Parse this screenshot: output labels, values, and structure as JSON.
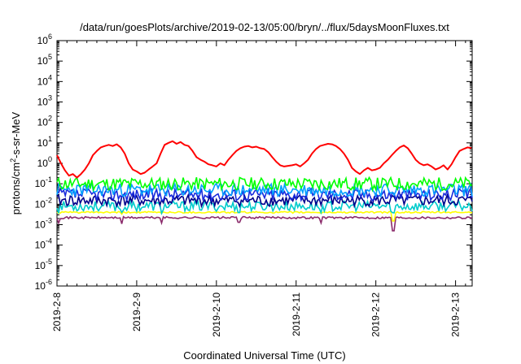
{
  "chart_data": {
    "type": "line",
    "title": "/data/run/goesPlots/archive/2019-02-13/05:00/bryn/../flux/5daysMoonFluxes.txt",
    "xlabel": "Coordinated Universal Time (UTC)",
    "ylabel": "protons/cm²-s-sr-MeV",
    "ylabel_parts": {
      "base": "protons/cm",
      "sup": "2",
      "rest": "-s-sr-MeV"
    },
    "yscale": "log",
    "ylim": [
      1e-06,
      1000000.0
    ],
    "ytick_exponents": [
      -6,
      -5,
      -4,
      -3,
      -2,
      -1,
      0,
      1,
      2,
      3,
      4,
      5,
      6
    ],
    "xlim": [
      "2019-02-08 00:00",
      "2019-02-13 05:00"
    ],
    "x_ticks": [
      {
        "label": "2019-2-8",
        "day": 0
      },
      {
        "label": "2019-2-9",
        "day": 1
      },
      {
        "label": "2019-2-10",
        "day": 2
      },
      {
        "label": "2019-2-11",
        "day": 3
      },
      {
        "label": "2019-2-12",
        "day": 4
      },
      {
        "label": "2019-2-13",
        "day": 5
      }
    ],
    "x_days_span": 5.2083,
    "grid": false,
    "legend": "none",
    "series": [
      {
        "color": "#ff0000",
        "x": [
          0.0,
          0.05,
          0.1,
          0.15,
          0.2,
          0.25,
          0.3,
          0.35,
          0.4,
          0.45,
          0.5,
          0.55,
          0.6,
          0.65,
          0.7,
          0.75,
          0.8,
          0.85,
          0.9,
          0.95,
          1.0,
          1.05,
          1.1,
          1.15,
          1.2,
          1.25,
          1.3,
          1.35,
          1.4,
          1.45,
          1.5,
          1.55,
          1.6,
          1.65,
          1.7,
          1.75,
          1.8,
          1.85,
          1.9,
          1.95,
          2.0,
          2.05,
          2.1,
          2.15,
          2.2,
          2.25,
          2.3,
          2.35,
          2.4,
          2.45,
          2.5,
          2.55,
          2.6,
          2.65,
          2.7,
          2.75,
          2.8,
          2.85,
          2.9,
          2.95,
          3.0,
          3.05,
          3.1,
          3.15,
          3.2,
          3.25,
          3.3,
          3.35,
          3.4,
          3.45,
          3.5,
          3.55,
          3.6,
          3.65,
          3.7,
          3.75,
          3.8,
          3.85,
          3.9,
          3.95,
          4.0,
          4.05,
          4.1,
          4.15,
          4.2,
          4.25,
          4.3,
          4.35,
          4.4,
          4.45,
          4.5,
          4.55,
          4.6,
          4.65,
          4.7,
          4.75,
          4.8,
          4.85,
          4.9,
          4.95,
          5.0,
          5.05,
          5.1,
          5.15,
          5.2
        ],
        "values": [
          2.5,
          1.0,
          0.45,
          0.25,
          0.3,
          0.2,
          0.3,
          0.5,
          1.0,
          2.5,
          4.0,
          6.0,
          7.0,
          8.0,
          7.0,
          8.5,
          6.0,
          3.0,
          1.0,
          0.5,
          0.4,
          0.3,
          0.35,
          0.5,
          0.7,
          1.0,
          3.0,
          8.0,
          10.0,
          12.0,
          9.0,
          11.0,
          8.0,
          7.0,
          4.0,
          2.0,
          1.5,
          1.2,
          0.9,
          0.8,
          0.7,
          1.0,
          0.8,
          1.5,
          2.5,
          4.0,
          5.5,
          6.5,
          7.0,
          6.0,
          6.5,
          5.5,
          5.0,
          3.5,
          2.0,
          1.2,
          0.8,
          0.7,
          0.75,
          0.8,
          0.9,
          0.7,
          1.0,
          1.5,
          3.0,
          5.0,
          7.0,
          8.0,
          9.0,
          8.5,
          7.0,
          5.0,
          3.0,
          1.5,
          0.6,
          0.4,
          0.3,
          0.45,
          0.6,
          0.45,
          0.5,
          0.6,
          1.0,
          1.5,
          2.5,
          4.0,
          6.0,
          7.5,
          5.5,
          3.0,
          1.5,
          1.0,
          0.8,
          0.9,
          0.7,
          0.5,
          0.6,
          0.8,
          0.5,
          0.9,
          2.0,
          4.0,
          5.0,
          6.0,
          5.5
        ]
      },
      {
        "color": "#00ff00",
        "x": [],
        "values": []
      },
      {
        "color": "#00a0ff",
        "x": [],
        "values": []
      },
      {
        "color": "#1a2bdc",
        "x": [],
        "values": []
      },
      {
        "color": "#00008b",
        "x": [],
        "values": []
      },
      {
        "color": "#00cccc",
        "x": [],
        "values": []
      },
      {
        "color": "#ffff00",
        "x": [],
        "values": []
      },
      {
        "color": "#8b2b6b",
        "x": [],
        "values": []
      }
    ],
    "generated_series": [
      {
        "color": "#00ff00",
        "level": 0.1,
        "jitter": 0.32,
        "seed": 11
      },
      {
        "color": "#00a0ff",
        "level": 0.05,
        "jitter": 0.32,
        "seed": 23
      },
      {
        "color": "#1a2bdc",
        "level": 0.03,
        "jitter": 0.3,
        "seed": 37
      },
      {
        "color": "#00008b",
        "level": 0.015,
        "jitter": 0.28,
        "seed": 41
      },
      {
        "color": "#00cccc",
        "level": 0.008,
        "jitter": 0.25,
        "seed": 53
      },
      {
        "color": "#ffff00",
        "level": 0.004,
        "jitter": 0.04,
        "seed": 61
      },
      {
        "color": "#8b2b6b",
        "level": 0.0022,
        "jitter": 0.05,
        "seed": 71
      }
    ],
    "dips": [
      {
        "day": 0.02,
        "to": 0.0012
      },
      {
        "day": 0.82,
        "to": 0.0011
      },
      {
        "day": 1.32,
        "to": 0.0012
      },
      {
        "day": 2.28,
        "to": 0.0013
      },
      {
        "day": 3.32,
        "to": 0.0012
      },
      {
        "day": 4.22,
        "to": 0.0005
      }
    ]
  }
}
